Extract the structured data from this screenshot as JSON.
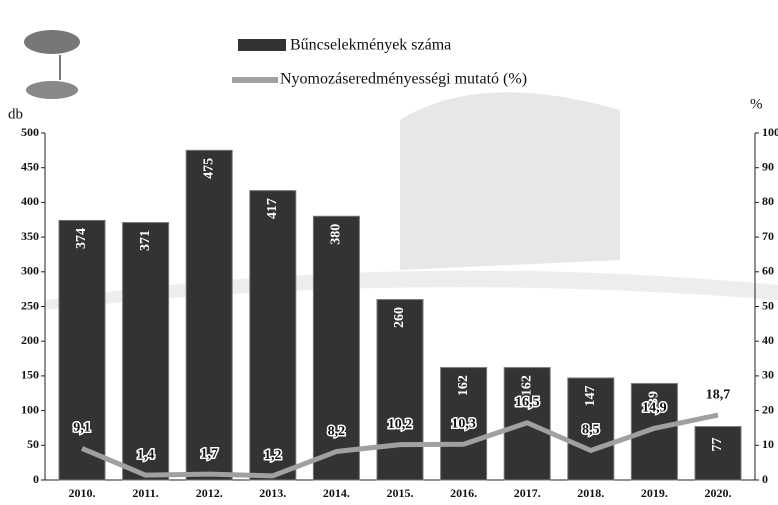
{
  "chart_data": {
    "type": "bar_line",
    "ylabel": "db",
    "y2label": "%",
    "categories": [
      "2010.",
      "2011.",
      "2012.",
      "2013.",
      "2014.",
      "2015.",
      "2016.",
      "2017.",
      "2018.",
      "2019.",
      "2020."
    ],
    "series": [
      {
        "name": "Bűncselekmények száma",
        "color": "#333333",
        "values": [
          374,
          371,
          475,
          417,
          380,
          260,
          162,
          162,
          147,
          139,
          77
        ]
      },
      {
        "name": "Nyomozáseredményességi mutató (%)",
        "color": "#a0a0a0",
        "axis": "y2",
        "values": [
          9.1,
          1.4,
          1.7,
          1.2,
          8.2,
          10.2,
          10.3,
          16.5,
          8.5,
          14.9,
          18.7
        ],
        "value_labels": [
          "9,1",
          "1,4",
          "1,7",
          "1,2",
          "8,2",
          "10,2",
          "10,3",
          "16,5",
          "8,5",
          "14,9",
          "18,7"
        ]
      }
    ],
    "ylim": [
      0,
      500
    ],
    "yticks": [
      0,
      50,
      100,
      150,
      200,
      250,
      300,
      350,
      400,
      450,
      500
    ],
    "y2lim": [
      0,
      100
    ],
    "y2ticks": [
      0,
      10,
      20,
      30,
      40,
      50,
      60,
      70,
      80,
      90,
      100
    ]
  }
}
